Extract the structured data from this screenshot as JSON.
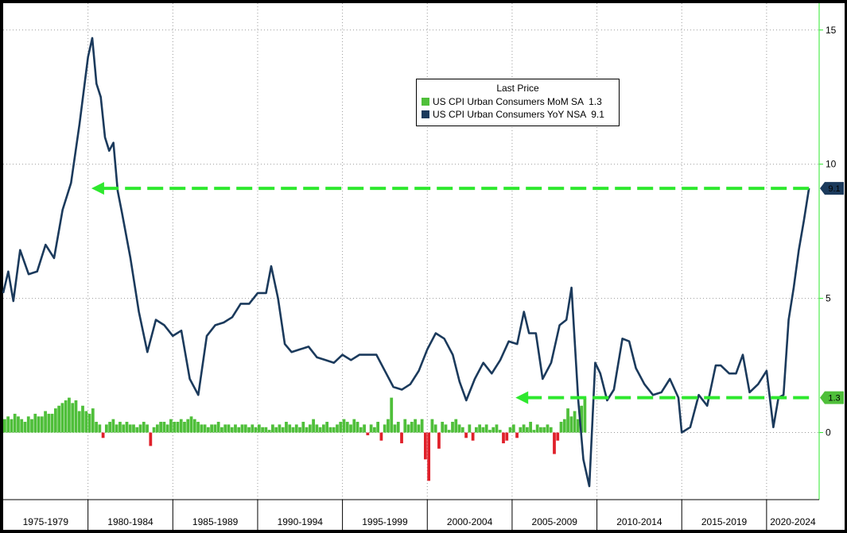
{
  "chart_data": {
    "type": "line",
    "legend": {
      "title": "Last Price",
      "placement": "top-center",
      "entries": [
        {
          "name": "US CPI Urban Consumers MoM SA",
          "value": "1.3",
          "color": "#4fbf3a"
        },
        {
          "name": "US CPI Urban Consumers YoY NSA",
          "value": "9.1",
          "color": "#1b3a5c"
        }
      ]
    },
    "y_axis": {
      "position": "right",
      "ylim": [
        -2.5,
        16
      ],
      "ticks": [
        "15",
        "10",
        "5",
        "0"
      ],
      "tick_values": [
        15,
        10,
        5,
        0
      ]
    },
    "x_axis": {
      "xlim": [
        1975.0,
        2023.1
      ],
      "periods": [
        "1975-1979",
        "1980-1984",
        "1985-1989",
        "1990-1994",
        "1995-1999",
        "2000-2004",
        "2005-2009",
        "2010-2014",
        "2015-2019",
        "2020-2024"
      ],
      "period_starts": [
        1975,
        1980,
        1985,
        1990,
        1995,
        2000,
        2005,
        2010,
        2015,
        2020
      ]
    },
    "grid": true,
    "series": [
      {
        "name": "US CPI Urban Consumers YoY NSA",
        "kind": "line",
        "color": "#1b3a5c",
        "x": [
          1975.0,
          1975.3,
          1975.6,
          1976.0,
          1976.5,
          1977.0,
          1977.5,
          1978.0,
          1978.5,
          1979.0,
          1979.5,
          1980.0,
          1980.25,
          1980.5,
          1980.75,
          1981.0,
          1981.25,
          1981.5,
          1981.75,
          1982.0,
          1982.5,
          1983.0,
          1983.5,
          1984.0,
          1984.5,
          1985.0,
          1985.5,
          1986.0,
          1986.5,
          1987.0,
          1987.5,
          1988.0,
          1988.5,
          1989.0,
          1989.5,
          1990.0,
          1990.5,
          1990.8,
          1991.2,
          1991.6,
          1992.0,
          1992.5,
          1993.0,
          1993.5,
          1994.0,
          1994.5,
          1995.0,
          1995.5,
          1996.0,
          1996.5,
          1997.0,
          1997.5,
          1998.0,
          1998.5,
          1999.0,
          1999.5,
          2000.0,
          2000.5,
          2001.0,
          2001.5,
          2001.9,
          2002.3,
          2002.8,
          2003.3,
          2003.8,
          2004.3,
          2004.8,
          2005.3,
          2005.7,
          2006.0,
          2006.4,
          2006.8,
          2007.3,
          2007.8,
          2008.2,
          2008.5,
          2008.9,
          2009.2,
          2009.55,
          2009.9,
          2010.2,
          2010.6,
          2011.0,
          2011.5,
          2011.9,
          2012.3,
          2012.8,
          2013.3,
          2013.8,
          2014.3,
          2014.8,
          2015.0,
          2015.5,
          2016.0,
          2016.5,
          2017.0,
          2017.3,
          2017.8,
          2018.2,
          2018.6,
          2019.0,
          2019.5,
          2020.0,
          2020.4,
          2020.7,
          2021.0,
          2021.3,
          2021.6,
          2021.9,
          2022.2,
          2022.5
        ],
        "y": [
          5.2,
          6.0,
          4.9,
          6.8,
          5.9,
          6.0,
          7.0,
          6.5,
          8.3,
          9.3,
          11.5,
          14.0,
          14.7,
          13.0,
          12.5,
          11.0,
          10.5,
          10.8,
          9.0,
          8.2,
          6.5,
          4.5,
          3.0,
          4.2,
          4.0,
          3.6,
          3.8,
          2.0,
          1.4,
          3.6,
          4.0,
          4.1,
          4.3,
          4.8,
          4.8,
          5.2,
          5.2,
          6.2,
          5.0,
          3.3,
          3.0,
          3.1,
          3.2,
          2.8,
          2.7,
          2.6,
          2.9,
          2.7,
          2.9,
          2.9,
          2.9,
          2.3,
          1.7,
          1.6,
          1.8,
          2.3,
          3.1,
          3.7,
          3.5,
          2.9,
          1.9,
          1.2,
          2.0,
          2.6,
          2.2,
          2.7,
          3.4,
          3.3,
          4.5,
          3.7,
          3.7,
          2.0,
          2.6,
          4.0,
          4.2,
          5.4,
          1.2,
          -1.0,
          -2.0,
          2.6,
          2.2,
          1.2,
          1.6,
          3.5,
          3.4,
          2.4,
          1.8,
          1.4,
          1.5,
          2.0,
          1.3,
          0.0,
          0.2,
          1.4,
          1.0,
          2.5,
          2.5,
          2.2,
          2.2,
          2.9,
          1.5,
          1.8,
          2.3,
          0.2,
          1.3,
          1.4,
          4.2,
          5.4,
          6.8,
          7.9,
          9.1
        ],
        "current_value": "9.1"
      },
      {
        "name": "US CPI Urban Consumers MoM SA",
        "kind": "bar",
        "color": "#4fbf3a",
        "negative_color": "#e0202a",
        "x_start": 1975.0,
        "x_step": 0.2,
        "values": [
          0.5,
          0.6,
          0.5,
          0.7,
          0.6,
          0.5,
          0.4,
          0.6,
          0.5,
          0.7,
          0.6,
          0.6,
          0.8,
          0.7,
          0.7,
          0.9,
          1.0,
          1.1,
          1.2,
          1.3,
          1.1,
          1.2,
          0.8,
          1.0,
          0.8,
          0.7,
          0.9,
          0.4,
          0.3,
          -0.2,
          0.3,
          0.4,
          0.5,
          0.3,
          0.4,
          0.3,
          0.4,
          0.3,
          0.3,
          0.2,
          0.3,
          0.4,
          0.3,
          -0.5,
          0.2,
          0.3,
          0.4,
          0.4,
          0.3,
          0.5,
          0.4,
          0.4,
          0.5,
          0.4,
          0.5,
          0.6,
          0.5,
          0.4,
          0.3,
          0.3,
          0.2,
          0.3,
          0.3,
          0.4,
          0.2,
          0.3,
          0.3,
          0.2,
          0.3,
          0.2,
          0.3,
          0.3,
          0.2,
          0.3,
          0.2,
          0.3,
          0.2,
          0.2,
          0.1,
          0.3,
          0.2,
          0.3,
          0.2,
          0.4,
          0.3,
          0.2,
          0.3,
          0.2,
          0.4,
          0.2,
          0.3,
          0.5,
          0.3,
          0.2,
          0.3,
          0.4,
          0.2,
          0.2,
          0.3,
          0.4,
          0.5,
          0.4,
          0.3,
          0.5,
          0.4,
          0.2,
          0.3,
          -0.1,
          0.3,
          0.2,
          0.4,
          -0.3,
          0.3,
          0.5,
          1.3,
          0.3,
          0.4,
          -0.4,
          0.5,
          0.3,
          0.4,
          0.5,
          0.3,
          0.5,
          -1.0,
          -1.8,
          0.5,
          0.3,
          -0.6,
          0.4,
          0.3,
          0.1,
          0.4,
          0.5,
          0.3,
          0.2,
          -0.2,
          0.3,
          -0.3,
          0.2,
          0.3,
          0.2,
          0.3,
          0.1,
          0.2,
          0.3,
          0.1,
          -0.4,
          -0.3,
          0.2,
          0.3,
          -0.2,
          0.2,
          0.3,
          0.2,
          0.4,
          0.1,
          0.3,
          0.2,
          0.2,
          0.3,
          0.2,
          -0.8,
          -0.3,
          0.4,
          0.5,
          0.9,
          0.6,
          0.8,
          0.5,
          1.0,
          1.3
        ],
        "current_value": "1.3"
      }
    ],
    "annotations": [
      {
        "kind": "dashed-arrow",
        "color": "#2ee82e",
        "from_x": 2022.5,
        "to_x": 1980.2,
        "y": 9.1,
        "label": ""
      },
      {
        "kind": "dashed-arrow",
        "color": "#2ee82e",
        "from_x": 2022.5,
        "to_x": 2005.2,
        "y": 1.3,
        "label": ""
      }
    ]
  },
  "badges": [
    {
      "text": "9.1",
      "value": 9.1,
      "color": "#1b3a5c"
    },
    {
      "text": "1.3",
      "value": 1.3,
      "color": "#4fbf3a"
    }
  ]
}
